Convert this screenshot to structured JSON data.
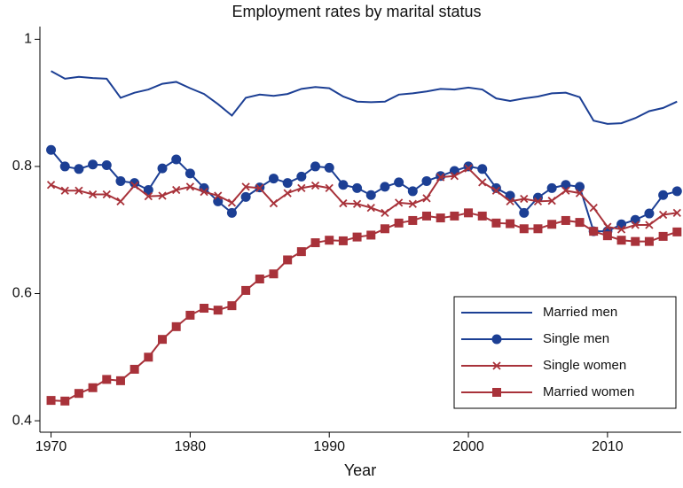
{
  "chart_data": {
    "type": "line",
    "title": "Employment rates by marital status",
    "x_label": "Year",
    "x": [
      1970,
      1971,
      1972,
      1973,
      1974,
      1975,
      1976,
      1977,
      1978,
      1979,
      1980,
      1981,
      1982,
      1983,
      1984,
      1985,
      1986,
      1987,
      1988,
      1989,
      1990,
      1991,
      1992,
      1993,
      1994,
      1995,
      1996,
      1997,
      1998,
      1999,
      2000,
      2001,
      2002,
      2003,
      2004,
      2005,
      2006,
      2007,
      2008,
      2009,
      2010,
      2011,
      2012,
      2013,
      2014,
      2015
    ],
    "series": [
      {
        "name": "Married men",
        "color": "#1c3f94",
        "marker": "none",
        "values": [
          0.95,
          0.938,
          0.941,
          0.939,
          0.938,
          0.908,
          0.916,
          0.921,
          0.93,
          0.933,
          0.923,
          0.914,
          0.898,
          0.88,
          0.908,
          0.913,
          0.911,
          0.914,
          0.922,
          0.925,
          0.923,
          0.91,
          0.902,
          0.901,
          0.902,
          0.913,
          0.915,
          0.918,
          0.922,
          0.921,
          0.924,
          0.921,
          0.907,
          0.903,
          0.907,
          0.91,
          0.915,
          0.916,
          0.909,
          0.872,
          0.867,
          0.868,
          0.876,
          0.887,
          0.892,
          0.902
        ]
      },
      {
        "name": "Single men",
        "color": "#1c3f94",
        "marker": "circle",
        "values": [
          0.826,
          0.8,
          0.796,
          0.803,
          0.802,
          0.777,
          0.774,
          0.763,
          0.797,
          0.811,
          0.789,
          0.766,
          0.745,
          0.727,
          0.752,
          0.767,
          0.781,
          0.774,
          0.784,
          0.8,
          0.798,
          0.771,
          0.766,
          0.755,
          0.768,
          0.775,
          0.761,
          0.777,
          0.785,
          0.793,
          0.8,
          0.796,
          0.766,
          0.754,
          0.727,
          0.751,
          0.766,
          0.771,
          0.768,
          0.698,
          0.698,
          0.709,
          0.716,
          0.726,
          0.755,
          0.761
        ]
      },
      {
        "name": "Single women",
        "color": "#a8323a",
        "marker": "x",
        "values": [
          0.771,
          0.762,
          0.762,
          0.756,
          0.756,
          0.745,
          0.77,
          0.753,
          0.754,
          0.763,
          0.768,
          0.76,
          0.754,
          0.743,
          0.768,
          0.766,
          0.742,
          0.758,
          0.766,
          0.77,
          0.766,
          0.742,
          0.741,
          0.735,
          0.727,
          0.743,
          0.741,
          0.75,
          0.783,
          0.785,
          0.797,
          0.775,
          0.762,
          0.745,
          0.749,
          0.745,
          0.746,
          0.762,
          0.758,
          0.735,
          0.705,
          0.701,
          0.708,
          0.708,
          0.724,
          0.727
        ]
      },
      {
        "name": "Married women",
        "color": "#a8323a",
        "marker": "square",
        "values": [
          0.432,
          0.431,
          0.443,
          0.452,
          0.465,
          0.463,
          0.481,
          0.5,
          0.528,
          0.548,
          0.566,
          0.577,
          0.574,
          0.581,
          0.605,
          0.623,
          0.631,
          0.653,
          0.666,
          0.68,
          0.684,
          0.683,
          0.689,
          0.692,
          0.702,
          0.711,
          0.715,
          0.722,
          0.719,
          0.722,
          0.727,
          0.722,
          0.711,
          0.71,
          0.702,
          0.702,
          0.709,
          0.715,
          0.712,
          0.698,
          0.691,
          0.684,
          0.682,
          0.682,
          0.69,
          0.697
        ]
      }
    ],
    "xlim": [
      1969.2,
      2015.3
    ],
    "xticks": [
      1970,
      1980,
      1990,
      2000,
      2010
    ],
    "ylim": [
      0.382,
      1.02
    ],
    "yticks": [
      0.4,
      0.6,
      0.8,
      1
    ],
    "grid": false,
    "legend": "bottom-right"
  }
}
